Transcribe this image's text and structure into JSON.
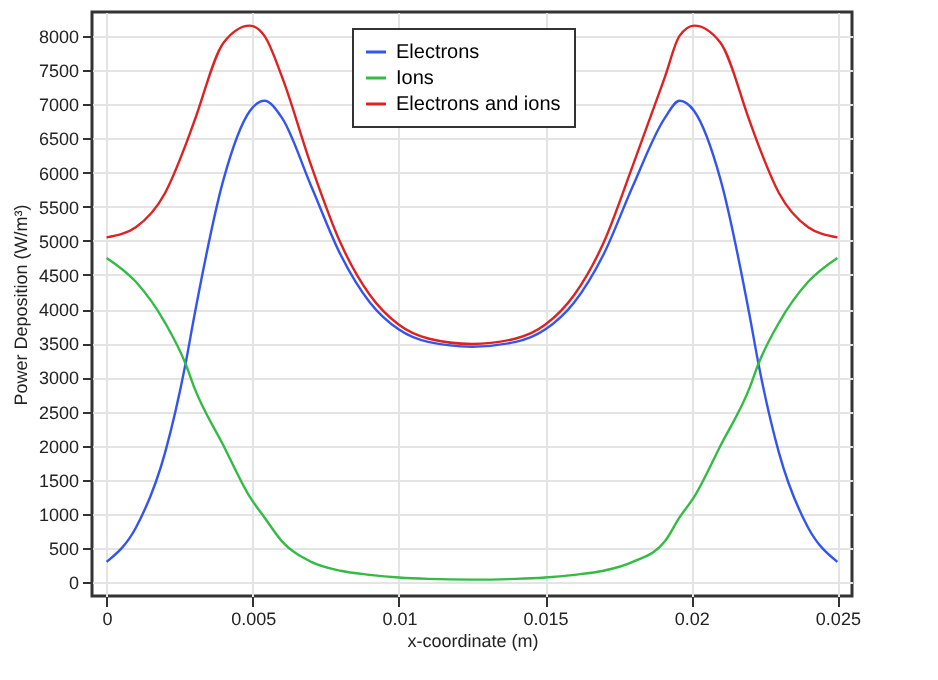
{
  "chart_data": {
    "type": "line",
    "xlabel": "x-coordinate (m)",
    "ylabel": "Power Deposition (W/m³)",
    "x": [
      0,
      0.001,
      0.002,
      0.0027,
      0.003,
      0.004,
      0.0049,
      0.0054,
      0.006,
      0.007,
      0.008,
      0.009,
      0.01,
      0.011,
      0.0125,
      0.014,
      0.015,
      0.016,
      0.017,
      0.018,
      0.0191,
      0.0196,
      0.0201,
      0.021,
      0.022,
      0.0223,
      0.023,
      0.024,
      0.025
    ],
    "series": [
      {
        "name": "Electrons",
        "color": "#3355ee",
        "values": [
          300,
          800,
          1900,
          3200,
          3900,
          5900,
          6900,
          7050,
          6800,
          5800,
          4800,
          4100,
          3700,
          3520,
          3450,
          3520,
          3700,
          4100,
          4800,
          5800,
          6800,
          7050,
          6900,
          5900,
          3900,
          3200,
          1900,
          800,
          300
        ]
      },
      {
        "name": "Ions",
        "color": "#33bb44",
        "values": [
          4750,
          4400,
          3800,
          3200,
          2850,
          2000,
          1250,
          950,
          600,
          300,
          170,
          110,
          70,
          50,
          40,
          50,
          70,
          110,
          170,
          300,
          600,
          950,
          1250,
          2000,
          2850,
          3200,
          3800,
          4400,
          4750
        ]
      },
      {
        "name": "Electrons and ions",
        "color": "#dd2222",
        "values": [
          5050,
          5200,
          5700,
          6400,
          6750,
          7900,
          8150,
          8000,
          7400,
          6100,
          4970,
          4210,
          3770,
          3570,
          3490,
          3570,
          3770,
          4210,
          4970,
          6100,
          7400,
          8000,
          8150,
          7900,
          6750,
          6400,
          5700,
          5200,
          5050
        ]
      }
    ],
    "xlim": [
      -0.0005,
      0.0255
    ],
    "ylim": [
      -200,
      8350
    ],
    "xticks": [
      0,
      0.005,
      0.01,
      0.015,
      0.02,
      0.025
    ],
    "yticks": [
      0,
      500,
      1000,
      1500,
      2000,
      2500,
      3000,
      3500,
      4000,
      4500,
      5000,
      5500,
      6000,
      6500,
      7000,
      7500,
      8000
    ],
    "grid": true,
    "legend": "top",
    "line_style": "solid",
    "marker": "none"
  }
}
